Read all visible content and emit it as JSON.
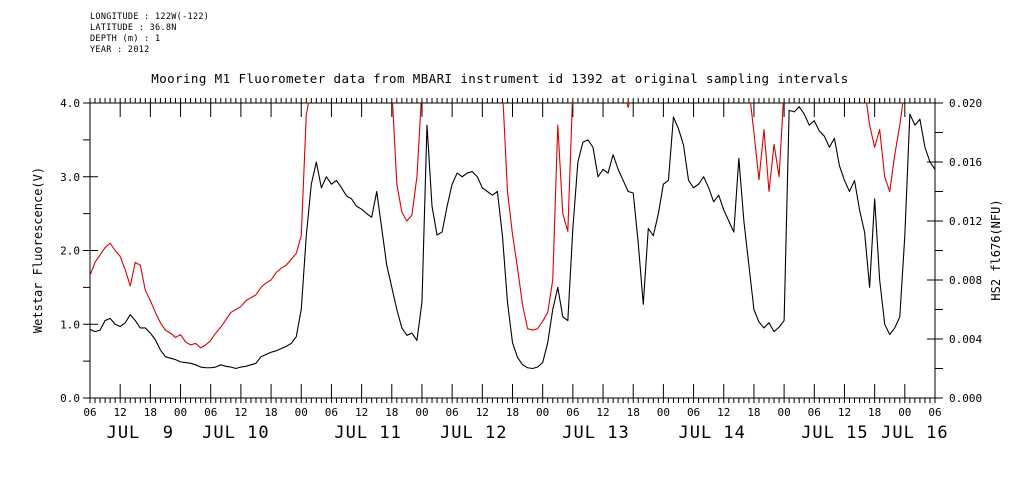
{
  "metadata": {
    "longitude": "LONGITUDE : 122W(-122)",
    "latitude": "LATITUDE : 36.8N",
    "depth": "DEPTH (m) : 1",
    "year": "YEAR : 2012"
  },
  "colors": {
    "foreground": "#000000",
    "wetstar_series": "#000000",
    "hs2_series": "#dd0000",
    "background": "#ffffff"
  },
  "chart_data": {
    "type": "line",
    "title": "Mooring M1 Fluorometer data from MBARI instrument id 1392 at original sampling intervals",
    "grid": false,
    "legend": "none",
    "x": {
      "description": "time, hourly samples from Jul 9 2012 06:00 to Jul 16 2012 06:00",
      "hours_span": 168,
      "minor_tick_every_hours": 1,
      "major_tick_every_hours": 6,
      "hour_tick_labels": [
        "06",
        "12",
        "18",
        "00",
        "06",
        "12",
        "18",
        "00",
        "06",
        "12",
        "18",
        "00",
        "06",
        "12",
        "18",
        "00",
        "06",
        "12",
        "18",
        "00",
        "06",
        "12",
        "18",
        "00",
        "06",
        "12",
        "18",
        "00",
        "06"
      ],
      "day_labels": [
        {
          "text": "JUL  9",
          "t": 10
        },
        {
          "text": "JUL 10",
          "t": 29
        },
        {
          "text": "JUL 11",
          "t": 55.3
        },
        {
          "text": "JUL 12",
          "t": 76.3
        },
        {
          "text": "JUL 13",
          "t": 100.6
        },
        {
          "text": "JUL 14",
          "t": 123.7
        },
        {
          "text": "JUL 15",
          "t": 148.1
        },
        {
          "text": "JUL 16",
          "t": 164
        }
      ]
    },
    "left_axis": {
      "label": "Wetstar Fluorescence(V)",
      "min": 0.0,
      "max": 4.0,
      "major_step": 1.0,
      "minor_step": 0.5,
      "tick_labels": [
        "0.0",
        "1.0",
        "2.0",
        "3.0",
        "4.0"
      ]
    },
    "right_axis": {
      "label": "HS2 fl676(NFU)",
      "label_color": "#dd0000",
      "min": 0.0,
      "max": 0.02,
      "major_step": 0.004,
      "minor_step": 0.002,
      "tick_labels": [
        "0.000",
        "0.004",
        "0.008",
        "0.012",
        "0.016",
        "0.020"
      ]
    },
    "series": [
      {
        "name": "Wetstar Fluorescence(V)",
        "axis": "left",
        "color": "#000000",
        "values": [
          0.93,
          0.9,
          0.92,
          1.05,
          1.08,
          1.0,
          0.97,
          1.02,
          1.13,
          1.05,
          0.95,
          0.95,
          0.88,
          0.79,
          0.65,
          0.56,
          0.54,
          0.52,
          0.49,
          0.48,
          0.47,
          0.45,
          0.42,
          0.41,
          0.41,
          0.42,
          0.45,
          0.43,
          0.42,
          0.4,
          0.42,
          0.43,
          0.45,
          0.47,
          0.56,
          0.59,
          0.62,
          0.64,
          0.67,
          0.7,
          0.74,
          0.83,
          1.2,
          2.2,
          2.9,
          3.2,
          2.85,
          3.0,
          2.9,
          2.95,
          2.85,
          2.74,
          2.7,
          2.6,
          2.56,
          2.5,
          2.45,
          2.8,
          2.3,
          1.8,
          1.5,
          1.2,
          0.95,
          0.85,
          0.88,
          0.78,
          1.3,
          3.7,
          2.6,
          2.21,
          2.25,
          2.6,
          2.9,
          3.05,
          3.0,
          3.05,
          3.07,
          3.0,
          2.85,
          2.8,
          2.75,
          2.8,
          2.2,
          1.3,
          0.75,
          0.55,
          0.45,
          0.41,
          0.4,
          0.42,
          0.48,
          0.75,
          1.2,
          1.5,
          1.1,
          1.05,
          2.3,
          3.2,
          3.47,
          3.5,
          3.4,
          3.0,
          3.1,
          3.05,
          3.3,
          3.1,
          2.95,
          2.8,
          2.78,
          2.1,
          1.27,
          2.3,
          2.2,
          2.5,
          2.9,
          2.95,
          3.81,
          3.65,
          3.43,
          2.95,
          2.85,
          2.9,
          3.0,
          2.85,
          2.66,
          2.75,
          2.55,
          2.4,
          2.25,
          3.25,
          2.4,
          1.8,
          1.2,
          1.03,
          0.95,
          1.02,
          0.9,
          0.96,
          1.05,
          3.9,
          3.88,
          3.95,
          3.85,
          3.7,
          3.76,
          3.62,
          3.55,
          3.4,
          3.52,
          3.15,
          2.95,
          2.8,
          2.95,
          2.55,
          2.25,
          1.5,
          2.7,
          1.6,
          1.0,
          0.86,
          0.95,
          1.1,
          2.2,
          3.85,
          3.7,
          3.78,
          3.4,
          3.2,
          3.1
        ]
      },
      {
        "name": "HS2 fl676(NFU)",
        "axis": "right",
        "color": "#dd0000",
        "offscale_sentinel": 0.021,
        "offscale_note": "values of 0.021 mark segments that exceed the axis maximum and run off the top of the plot",
        "values": [
          0.0083,
          0.0092,
          0.0097,
          0.0102,
          0.0105,
          0.01,
          0.0096,
          0.0087,
          0.0076,
          0.0092,
          0.009,
          0.0073,
          0.0066,
          0.0058,
          0.0051,
          0.0046,
          0.0044,
          0.0041,
          0.0043,
          0.0038,
          0.0036,
          0.0037,
          0.0034,
          0.0036,
          0.0039,
          0.0044,
          0.0048,
          0.0053,
          0.0058,
          0.006,
          0.0062,
          0.0066,
          0.0068,
          0.007,
          0.0075,
          0.0078,
          0.008,
          0.0085,
          0.0088,
          0.009,
          0.0094,
          0.0098,
          0.011,
          0.0192,
          0.021,
          0.021,
          0.021,
          0.021,
          0.021,
          0.021,
          0.021,
          0.021,
          0.021,
          0.021,
          0.021,
          0.021,
          0.021,
          0.021,
          0.021,
          0.021,
          0.021,
          0.0145,
          0.0126,
          0.012,
          0.0124,
          0.015,
          0.021,
          0.021,
          0.021,
          0.021,
          0.021,
          0.021,
          0.021,
          0.021,
          0.021,
          0.021,
          0.021,
          0.021,
          0.021,
          0.021,
          0.021,
          0.021,
          0.021,
          0.014,
          0.0111,
          0.0088,
          0.0063,
          0.0047,
          0.0046,
          0.0047,
          0.0052,
          0.0058,
          0.008,
          0.0185,
          0.0125,
          0.0113,
          0.021,
          0.021,
          0.021,
          0.021,
          0.021,
          0.021,
          0.021,
          0.021,
          0.021,
          0.021,
          0.021,
          0.0197,
          0.021,
          0.021,
          0.021,
          0.021,
          0.021,
          0.021,
          0.021,
          0.021,
          0.021,
          0.021,
          0.021,
          0.021,
          0.021,
          0.021,
          0.021,
          0.021,
          0.021,
          0.021,
          0.021,
          0.021,
          0.021,
          0.021,
          0.021,
          0.021,
          0.018,
          0.0148,
          0.0182,
          0.014,
          0.0172,
          0.015,
          0.021,
          0.021,
          0.021,
          0.021,
          0.021,
          0.021,
          0.021,
          0.021,
          0.021,
          0.021,
          0.021,
          0.021,
          0.021,
          0.021,
          0.021,
          0.021,
          0.021,
          0.0185,
          0.017,
          0.0182,
          0.015,
          0.014,
          0.0165,
          0.0185,
          0.021,
          0.021,
          0.021,
          0.021,
          0.021,
          0.021,
          0.021
        ]
      }
    ]
  }
}
